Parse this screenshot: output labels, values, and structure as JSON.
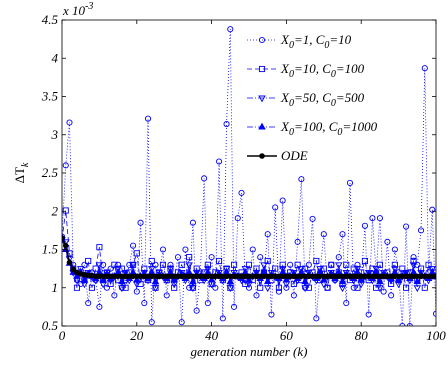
{
  "chart_data": {
    "type": "line",
    "xlabel": "generation number (k)",
    "ylabel": {
      "main": "ΔT",
      "sub": "k"
    },
    "y_scale_note": {
      "base": "x 10",
      "exp": "-3"
    },
    "xlim": [
      0,
      100
    ],
    "ylim": [
      0.5,
      4.5
    ],
    "x_ticks": [
      0,
      20,
      40,
      60,
      80,
      100
    ],
    "y_ticks": [
      0.5,
      1,
      1.5,
      2,
      2.5,
      3,
      3.5,
      4,
      4.5
    ],
    "x_tick_labels": [
      "0",
      "20",
      "40",
      "60",
      "80",
      "100"
    ],
    "y_tick_labels": [
      "0.5",
      "1",
      "1.5",
      "2",
      "2.5",
      "3",
      "3.5",
      "4",
      "4.5"
    ],
    "grid": false,
    "legend_position": "top-right",
    "series": [
      {
        "name": {
          "a": "X",
          "a_sub": "0",
          "b": "=1, C",
          "b_sub": "0",
          "c": "=10"
        },
        "marker": "circle",
        "line_style": "dotted",
        "color": "#0000ff",
        "y": [
          1.67,
          2.6,
          3.16,
          1.3,
          1.1,
          1.05,
          1.3,
          0.8,
          1.2,
          1.1,
          0.75,
          1.3,
          1.0,
          1.25,
          0.9,
          1.3,
          1.0,
          1.1,
          1.3,
          1.55,
          0.95,
          1.85,
          0.8,
          3.21,
          0.55,
          1.3,
          1.15,
          1.5,
          0.9,
          1.3,
          1.1,
          1.4,
          0.55,
          1.5,
          1.0,
          1.85,
          0.7,
          1.2,
          2.43,
          0.8,
          1.4,
          1.0,
          2.65,
          0.6,
          3.14,
          4.38,
          0.75,
          1.91,
          2.24,
          1.1,
          1.0,
          1.5,
          0.9,
          1.4,
          1.2,
          1.7,
          0.65,
          2.05,
          0.95,
          2.14,
          1.0,
          1.3,
          0.9,
          1.6,
          2.42,
          1.0,
          1.3,
          1.9,
          0.6,
          1.2,
          1.7,
          1.0,
          1.3,
          1.1,
          1.4,
          1.7,
          0.8,
          2.37,
          1.0,
          1.3,
          1.1,
          1.81,
          0.65,
          1.91,
          1.2,
          1.91,
          0.95,
          1.6,
          0.9,
          1.5,
          1.2,
          0.5,
          1.8,
          0.5,
          1.4,
          1.3,
          1.75,
          3.87,
          1.2,
          2.02,
          0.66
        ]
      },
      {
        "name": {
          "a": "X",
          "a_sub": "0",
          "b": "=10, C",
          "b_sub": "0",
          "c": "=100"
        },
        "marker": "square",
        "line_style": "dashed",
        "color": "#0000ff",
        "y": [
          1.63,
          2.01,
          1.45,
          1.25,
          1.0,
          1.2,
          1.1,
          1.35,
          1.0,
          1.25,
          1.53,
          1.1,
          1.2,
          1.05,
          1.3,
          1.1,
          1.25,
          1.0,
          1.2,
          1.3,
          1.45,
          1.05,
          1.25,
          1.1,
          1.35,
          1.0,
          1.2,
          1.3,
          1.1,
          1.25,
          1.0,
          1.2,
          1.3,
          1.15,
          1.4,
          1.0,
          1.25,
          1.1,
          1.2,
          1.3,
          1.05,
          1.2,
          1.35,
          1.1,
          1.25,
          1.0,
          1.3,
          1.15,
          1.2,
          1.05,
          1.3,
          1.1,
          1.25,
          1.0,
          1.2,
          1.35,
          1.1,
          1.25,
          1.0,
          1.3,
          1.15,
          1.2,
          1.05,
          1.3,
          1.1,
          1.25,
          1.0,
          1.2,
          1.35,
          1.1,
          1.25,
          1.0,
          1.3,
          1.15,
          1.2,
          1.05,
          1.3,
          1.1,
          1.25,
          1.0,
          1.2,
          1.35,
          1.1,
          1.25,
          1.0,
          1.3,
          1.15,
          1.2,
          1.05,
          1.3,
          1.1,
          1.25,
          1.0,
          1.2,
          1.35,
          1.1,
          1.25,
          1.0,
          1.3,
          1.15,
          1.2
        ]
      },
      {
        "name": {
          "a": "X",
          "a_sub": "0",
          "b": "=50, C",
          "b_sub": "0",
          "c": "=500"
        },
        "marker": "triangle-down",
        "line_style": "dashdot",
        "color": "#0000ff",
        "y": [
          1.63,
          1.6,
          1.38,
          1.2,
          1.1,
          1.25,
          1.05,
          1.2,
          1.15,
          1.1,
          1.3,
          1.05,
          1.2,
          1.1,
          1.15,
          1.25,
          1.0,
          1.2,
          1.1,
          1.3,
          1.05,
          1.15,
          1.2,
          1.1,
          1.25,
          1.0,
          1.2,
          1.15,
          1.1,
          1.25,
          1.05,
          1.15,
          1.2,
          1.1,
          1.3,
          1.0,
          1.2,
          1.15,
          1.1,
          1.25,
          1.05,
          1.15,
          1.2,
          1.1,
          1.25,
          1.0,
          1.2,
          1.15,
          1.1,
          1.25,
          1.05,
          1.15,
          1.2,
          1.1,
          1.3,
          1.0,
          1.2,
          1.15,
          1.1,
          1.25,
          1.05,
          1.15,
          1.2,
          1.1,
          1.25,
          1.0,
          1.2,
          1.15,
          1.1,
          1.25,
          1.05,
          1.15,
          1.2,
          1.1,
          1.3,
          1.0,
          1.2,
          1.15,
          1.1,
          1.25,
          1.05,
          1.15,
          1.2,
          1.1,
          1.25,
          1.0,
          1.2,
          1.15,
          1.1,
          1.25,
          1.05,
          1.15,
          1.2,
          1.1,
          1.3,
          1.0,
          1.2,
          1.15,
          1.1,
          1.25,
          1.15
        ]
      },
      {
        "name": {
          "a": "X",
          "a_sub": "0",
          "b": "=100, C",
          "b_sub": "0",
          "c": "=1000"
        },
        "marker": "triangle-up",
        "line_style": "dashdot",
        "color": "#0000ff",
        "y": [
          1.63,
          1.5,
          1.32,
          1.2,
          1.15,
          1.2,
          1.1,
          1.18,
          1.15,
          1.12,
          1.2,
          1.1,
          1.18,
          1.12,
          1.15,
          1.2,
          1.08,
          1.18,
          1.12,
          1.2,
          1.1,
          1.15,
          1.18,
          1.12,
          1.2,
          1.08,
          1.17,
          1.15,
          1.12,
          1.2,
          1.1,
          1.15,
          1.18,
          1.12,
          1.2,
          1.08,
          1.17,
          1.15,
          1.12,
          1.2,
          1.1,
          1.15,
          1.18,
          1.12,
          1.2,
          1.08,
          1.17,
          1.15,
          1.12,
          1.2,
          1.1,
          1.15,
          1.18,
          1.12,
          1.2,
          1.08,
          1.17,
          1.15,
          1.12,
          1.2,
          1.1,
          1.15,
          1.18,
          1.12,
          1.2,
          1.08,
          1.17,
          1.15,
          1.12,
          1.2,
          1.1,
          1.15,
          1.18,
          1.12,
          1.2,
          1.08,
          1.17,
          1.15,
          1.12,
          1.2,
          1.1,
          1.15,
          1.18,
          1.12,
          1.2,
          1.08,
          1.17,
          1.15,
          1.12,
          1.2,
          1.1,
          1.15,
          1.18,
          1.12,
          1.2,
          1.08,
          1.17,
          1.15,
          1.12,
          1.2,
          1.15
        ]
      },
      {
        "name": {
          "a": "ODE"
        },
        "marker": "circle-filled",
        "line_style": "solid",
        "color": "#000000",
        "y": [
          1.65,
          1.55,
          1.33,
          1.24,
          1.2,
          1.18,
          1.17,
          1.16,
          1.16,
          1.15,
          1.15,
          1.15,
          1.15,
          1.15,
          1.15,
          1.15,
          1.15,
          1.15,
          1.15,
          1.15,
          1.15,
          1.15,
          1.15,
          1.15,
          1.15,
          1.15,
          1.15,
          1.15,
          1.15,
          1.15,
          1.15,
          1.15,
          1.15,
          1.15,
          1.15,
          1.15,
          1.15,
          1.15,
          1.15,
          1.15,
          1.15,
          1.15,
          1.15,
          1.15,
          1.15,
          1.15,
          1.15,
          1.15,
          1.15,
          1.15,
          1.15,
          1.15,
          1.15,
          1.15,
          1.15,
          1.15,
          1.15,
          1.15,
          1.15,
          1.15,
          1.15,
          1.15,
          1.15,
          1.15,
          1.15,
          1.15,
          1.15,
          1.15,
          1.15,
          1.15,
          1.15,
          1.15,
          1.15,
          1.15,
          1.15,
          1.15,
          1.15,
          1.15,
          1.15,
          1.15,
          1.15,
          1.15,
          1.15,
          1.15,
          1.15,
          1.15,
          1.15,
          1.15,
          1.15,
          1.15,
          1.15,
          1.15,
          1.15,
          1.15,
          1.15,
          1.15,
          1.15,
          1.15,
          1.15,
          1.15,
          1.15
        ]
      }
    ]
  }
}
